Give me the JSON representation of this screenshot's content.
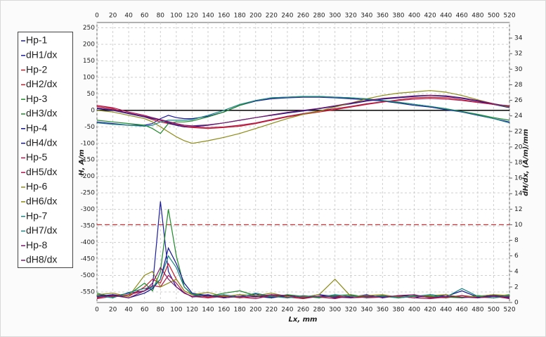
{
  "chart_data": {
    "type": "line",
    "x_label": "Lx, mm",
    "y_label": "H, A/m",
    "y2_label": "dH/dx, (A/m)/mm",
    "x": [
      0,
      20,
      40,
      60,
      70,
      80,
      90,
      100,
      110,
      120,
      140,
      160,
      180,
      200,
      220,
      240,
      260,
      280,
      300,
      320,
      340,
      360,
      380,
      400,
      420,
      440,
      460,
      480,
      500,
      520
    ],
    "xlim": [
      0,
      520
    ],
    "xticks": [
      0,
      20,
      40,
      60,
      80,
      100,
      120,
      140,
      160,
      180,
      200,
      220,
      240,
      260,
      280,
      300,
      320,
      340,
      360,
      380,
      400,
      420,
      440,
      460,
      480,
      500,
      520
    ],
    "ylim": [
      -582,
      266
    ],
    "yticks": [
      250,
      200,
      150,
      100,
      50,
      0,
      -50,
      -100,
      -150,
      -200,
      -250,
      -300,
      -350,
      -400,
      -450,
      -500,
      -550
    ],
    "y2lim": [
      0,
      36
    ],
    "y2ticks": [
      0,
      2,
      4,
      6,
      8,
      10,
      12,
      14,
      16,
      18,
      20,
      22,
      24,
      26,
      28,
      30,
      32,
      34
    ],
    "grid": true,
    "zero_line": true,
    "legend": "left",
    "threshold": {
      "value": 10,
      "axis": "y2",
      "color": "#e02020"
    },
    "series": [
      {
        "name": "Hp-1",
        "color": "#1c1ca0",
        "values": [
          -35,
          -40,
          -45,
          -45,
          -40,
          -25,
          -15,
          -22,
          -25,
          -25,
          -18,
          -5,
          15,
          28,
          35,
          38,
          40,
          40,
          38,
          35,
          32,
          28,
          22,
          15,
          10,
          2,
          -5,
          -15,
          -25,
          -35
        ]
      },
      {
        "name": "dH1/dx",
        "color": "#1c1ca0",
        "axis": "y2",
        "values": [
          1,
          0.8,
          1.2,
          1.5,
          2,
          13,
          4,
          2,
          1.2,
          0.8,
          1,
          0.6,
          0.8,
          1.1,
          0.7,
          0.9,
          0.6,
          1,
          0.8,
          0.7,
          1,
          0.6,
          0.9,
          0.8,
          0.7,
          1,
          0.6,
          0.8,
          1,
          0.7
        ]
      },
      {
        "name": "Hp-2",
        "color": "#c41e2a",
        "values": [
          12,
          5,
          -10,
          -20,
          -28,
          -35,
          -40,
          -45,
          -50,
          -52,
          -55,
          -52,
          -48,
          -40,
          -30,
          -20,
          -12,
          -5,
          2,
          10,
          18,
          25,
          32,
          38,
          40,
          38,
          32,
          25,
          18,
          12
        ]
      },
      {
        "name": "dH2/dx",
        "color": "#c41e2a",
        "axis": "y2",
        "values": [
          0.6,
          1,
          0.8,
          2,
          3,
          2.5,
          5,
          3,
          1.5,
          1,
          0.7,
          0.9,
          0.6,
          0.8,
          1,
          0.7,
          0.5,
          0.8,
          0.9,
          0.6,
          0.7,
          0.9,
          0.6,
          0.8,
          0.7,
          0.6,
          0.9,
          0.7,
          0.6,
          0.8
        ]
      },
      {
        "name": "Hp-3",
        "color": "#1e8a2a",
        "values": [
          -30,
          -35,
          -40,
          -45,
          -55,
          -70,
          -40,
          -35,
          -35,
          -32,
          -20,
          -5,
          15,
          30,
          38,
          40,
          42,
          42,
          40,
          38,
          34,
          30,
          24,
          18,
          12,
          5,
          -3,
          -12,
          -22,
          -30
        ]
      },
      {
        "name": "dH3/dx",
        "color": "#1e8a2a",
        "axis": "y2",
        "values": [
          1.2,
          0.7,
          1,
          2.5,
          1.5,
          4,
          12,
          6,
          2,
          1,
          0.8,
          1.2,
          1.5,
          0.9,
          0.7,
          1,
          0.8,
          0.6,
          0.9,
          1,
          0.7,
          0.8,
          0.6,
          0.9,
          0.8,
          0.7,
          0.6,
          0.9,
          0.8,
          1
        ]
      },
      {
        "name": "Hp-4",
        "color": "#14148c",
        "values": [
          5,
          0,
          -10,
          -20,
          -25,
          -30,
          -38,
          -45,
          -50,
          -50,
          -45,
          -38,
          -30,
          -22,
          -15,
          -8,
          -2,
          5,
          12,
          20,
          28,
          34,
          38,
          42,
          45,
          42,
          36,
          28,
          18,
          8
        ]
      },
      {
        "name": "dH4/dx",
        "color": "#14148c",
        "axis": "y2",
        "values": [
          0.8,
          1,
          0.6,
          1.2,
          1.8,
          3,
          7,
          5,
          2.5,
          1.2,
          0.9,
          0.7,
          1,
          0.8,
          0.6,
          0.9,
          0.7,
          1,
          0.6,
          0.8,
          0.9,
          0.7,
          0.8,
          0.6,
          1,
          0.8,
          1.5,
          0.7,
          0.9,
          0.6
        ]
      },
      {
        "name": "Hp-5",
        "color": "#b01850",
        "values": [
          15,
          8,
          -5,
          -15,
          -22,
          -30,
          -35,
          -42,
          -48,
          -50,
          -52,
          -50,
          -45,
          -38,
          -28,
          -18,
          -10,
          -2,
          5,
          12,
          20,
          26,
          30,
          34,
          36,
          34,
          30,
          24,
          18,
          14
        ]
      },
      {
        "name": "dH5/dx",
        "color": "#b01850",
        "axis": "y2",
        "values": [
          0.5,
          0.8,
          1,
          1.5,
          2.2,
          2,
          3.5,
          2.5,
          1.2,
          0.8,
          0.6,
          0.8,
          0.7,
          0.5,
          0.9,
          0.6,
          0.8,
          0.7,
          0.5,
          0.9,
          0.6,
          0.7,
          0.8,
          0.6,
          0.5,
          0.7,
          0.9,
          0.6,
          0.8,
          0.5
        ]
      },
      {
        "name": "Hp-6",
        "color": "#8c8a14",
        "values": [
          0,
          -5,
          -15,
          -25,
          -35,
          -50,
          -65,
          -80,
          -92,
          -100,
          -92,
          -82,
          -70,
          -55,
          -40,
          -25,
          -12,
          -2,
          10,
          22,
          35,
          45,
          52,
          56,
          60,
          55,
          45,
          32,
          20,
          10
        ]
      },
      {
        "name": "dH6/dx",
        "color": "#8c8a14",
        "axis": "y2",
        "values": [
          1,
          1.2,
          0.8,
          3.5,
          4,
          2,
          2.5,
          3,
          1.5,
          1,
          1.3,
          0.8,
          1,
          0.9,
          1.2,
          0.8,
          0.7,
          1,
          3,
          0.8,
          0.9,
          1,
          0.7,
          0.8,
          0.9,
          1,
          0.7,
          0.8,
          1,
          0.9
        ]
      },
      {
        "name": "Hp-7",
        "color": "#1a8480",
        "values": [
          -38,
          -42,
          -45,
          -48,
          -45,
          -35,
          -30,
          -30,
          -30,
          -28,
          -15,
          0,
          18,
          30,
          38,
          40,
          42,
          42,
          40,
          38,
          35,
          30,
          25,
          18,
          12,
          4,
          -4,
          -14,
          -25,
          -38
        ]
      },
      {
        "name": "dH7/dx",
        "color": "#1a8480",
        "axis": "y2",
        "values": [
          0.9,
          0.6,
          1.3,
          1.8,
          2,
          3,
          6,
          4.5,
          2,
          1.1,
          0.8,
          1,
          0.7,
          1.2,
          0.8,
          0.6,
          0.9,
          0.7,
          1,
          0.8,
          0.7,
          0.9,
          0.6,
          0.8,
          1,
          0.7,
          1.8,
          0.8,
          0.6,
          0.9
        ]
      },
      {
        "name": "Hp-8",
        "color": "#7a1a6a",
        "values": [
          8,
          2,
          -8,
          -18,
          -22,
          -28,
          -34,
          -40,
          -45,
          -47,
          -44,
          -38,
          -30,
          -22,
          -14,
          -6,
          0,
          6,
          14,
          22,
          30,
          36,
          40,
          44,
          46,
          44,
          38,
          30,
          20,
          12
        ]
      },
      {
        "name": "dH8/dx",
        "color": "#7a1a6a",
        "axis": "y2",
        "values": [
          0.7,
          0.9,
          0.6,
          1.5,
          2.5,
          4.5,
          3,
          2,
          1.3,
          0.7,
          0.9,
          0.6,
          0.8,
          0.7,
          1,
          0.9,
          0.6,
          0.8,
          0.7,
          0.6,
          0.8,
          0.7,
          0.9,
          1,
          0.6,
          0.8,
          0.7,
          0.6,
          0.8,
          0.7
        ]
      }
    ]
  }
}
